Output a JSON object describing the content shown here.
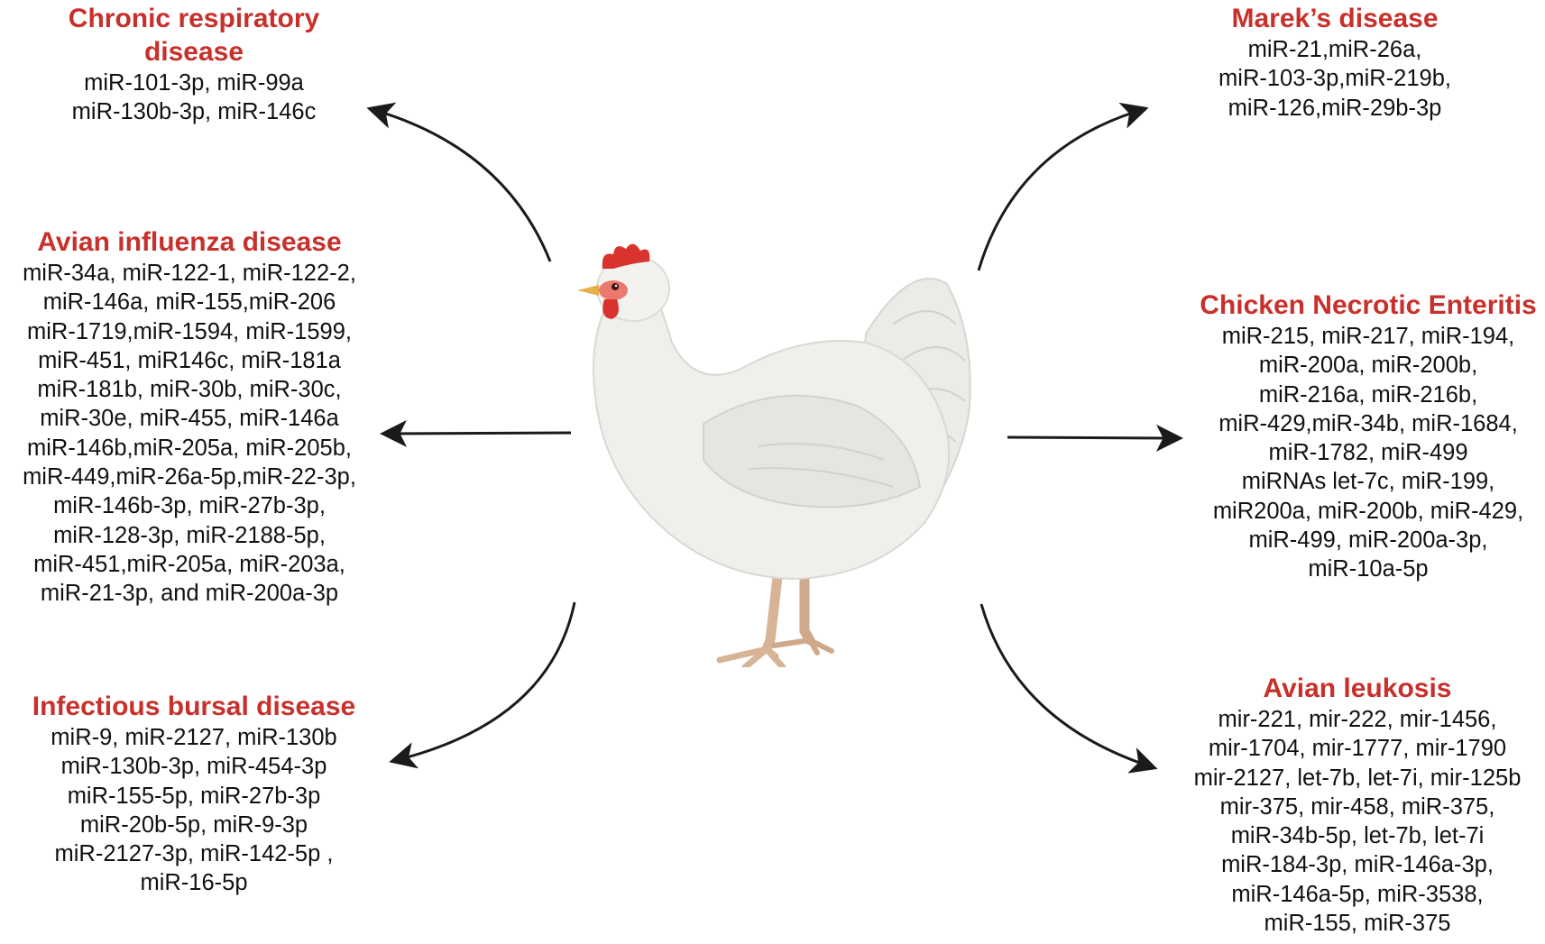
{
  "colors": {
    "title": "#c8302b",
    "text": "#111111",
    "arrow": "#1a1a1a",
    "chicken_body": "#efefec",
    "comb": "#d9332e",
    "beak": "#e8b04a",
    "legs": "#d9b89a"
  },
  "center_image": {
    "icon": "white-chicken-icon"
  },
  "diseases": {
    "chronic_respiratory": {
      "title": "Chronic respiratory\ndisease",
      "mirnas": [
        "miR-101-3p, miR-99a",
        "miR-130b-3p, miR-146c"
      ]
    },
    "avian_influenza": {
      "title": "Avian influenza disease",
      "mirnas": [
        "miR-34a, miR-122-1, miR-122-2,",
        "miR-146a, miR-155,miR-206",
        "miR-1719,miR-1594, miR-1599,",
        "miR-451, miR146c, miR-181a",
        "miR-181b, miR-30b, miR-30c,",
        "miR-30e, miR-455, miR-146a",
        "miR-146b,miR-205a, miR-205b,",
        "miR-449,miR-26a-5p,miR-22-3p,",
        "miR-146b-3p, miR-27b-3p,",
        "miR-128-3p, miR-2188-5p,",
        "miR-451,miR-205a, miR-203a,",
        "miR-21-3p, and miR-200a-3p"
      ]
    },
    "infectious_bursal": {
      "title": "Infectious bursal disease",
      "mirnas": [
        "miR-9, miR-2127, miR-130b",
        "miR-130b-3p, miR-454-3p",
        "miR-155-5p, miR-27b-3p",
        "miR-20b-5p, miR-9-3p",
        "miR-2127-3p, miR-142-5p ,",
        "miR-16-5p"
      ]
    },
    "mareks": {
      "title": "Marek’s disease",
      "mirnas": [
        "miR-21,miR-26a,",
        "miR-103-3p,miR-219b,",
        "miR-126,miR-29b-3p"
      ]
    },
    "necrotic_enteritis": {
      "title": "Chicken Necrotic Enteritis",
      "mirnas": [
        "miR-215, miR-217, miR-194,",
        "miR-200a, miR-200b,",
        "miR-216a, miR-216b,",
        "miR-429,miR-34b, miR-1684,",
        "miR-1782, miR-499",
        "miRNAs let-7c, miR-199,",
        "miR200a, miR-200b, miR-429,",
        "miR-499, miR-200a-3p,",
        "miR-10a-5p"
      ]
    },
    "avian_leukosis": {
      "title": "Avian leukosis",
      "mirnas": [
        "mir-221, mir-222, mir-1456,",
        "mir-1704, mir-1777, mir-1790",
        "mir-2127, let-7b, let-7i, mir-125b",
        "mir-375, mir-458, miR-375,",
        "miR-34b-5p, let-7b, let-7i",
        "miR-184-3p, miR-146a-3p,",
        "miR-146a-5p, miR-3538,",
        "miR-155, miR-375"
      ]
    }
  }
}
